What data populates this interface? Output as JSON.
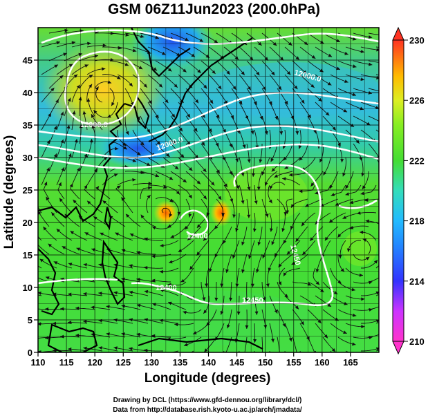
{
  "title": "GSM 06Z11Jun2023 (200.0hPa)",
  "x_axis": {
    "label": "Longitude (degrees)",
    "ticks": [
      "110",
      "115",
      "120",
      "125",
      "130",
      "135",
      "140",
      "145",
      "150",
      "155",
      "160",
      "165"
    ]
  },
  "y_axis": {
    "label": "Latitude  (degrees)",
    "ticks": [
      "0",
      "5",
      "10",
      "15",
      "20",
      "25",
      "30",
      "35",
      "40",
      "45"
    ]
  },
  "colorbar": {
    "ticks": [
      "210",
      "214",
      "218",
      "222",
      "226",
      "230"
    ],
    "range": [
      210,
      230
    ],
    "colors": [
      "#ff33cc",
      "#3333ff",
      "#22aaff",
      "#33ddcc",
      "#55dd33",
      "#88ee22",
      "#ccee22",
      "#ffcc00",
      "#ff8800",
      "#ff3333"
    ]
  },
  "contour_labels": [
    "12000.0",
    "12000.0",
    "12000.0",
    "12400",
    "12450",
    "12400",
    "12450"
  ],
  "credits": [
    "Drawing by DCL (https://www.gfd-dennou.org/library/dcl/)",
    "Data from http://database.rish.kyoto-u.ac.jp/arch/jmadata/"
  ]
}
